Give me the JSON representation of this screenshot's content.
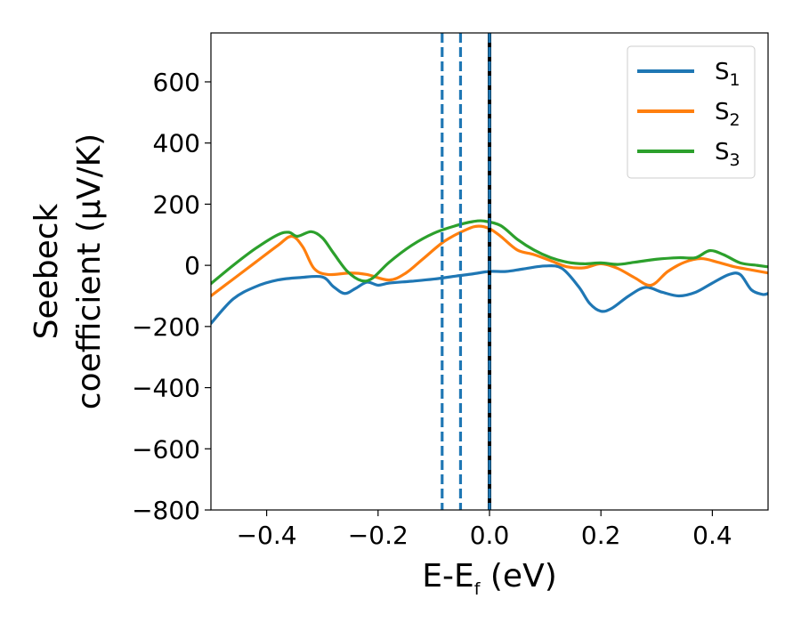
{
  "chart_data": {
    "type": "line",
    "xlabel": {
      "main": "E-E",
      "sub": "f",
      "unit": " (eV)"
    },
    "ylabel": {
      "line1": "Seebeck",
      "line2": "coefficient  (μV/K)"
    },
    "xlim": [
      -0.5,
      0.5
    ],
    "ylim": [
      -800,
      760
    ],
    "xticks": [
      -0.4,
      -0.2,
      0.0,
      0.2,
      0.4
    ],
    "xtick_labels": [
      "−0.4",
      "−0.2",
      "0.0",
      "0.2",
      "0.4"
    ],
    "yticks": [
      -800,
      -600,
      -400,
      -200,
      0,
      200,
      400,
      600
    ],
    "ytick_labels": [
      "−800",
      "−600",
      "−400",
      "−200",
      "0",
      "200",
      "400",
      "600"
    ],
    "grid": false,
    "legend_position": "top-right",
    "vertical_lines": [
      {
        "x": -0.085,
        "style": "dashed",
        "color": "#1f77b4"
      },
      {
        "x": -0.052,
        "style": "dashed",
        "color": "#1f77b4"
      },
      {
        "x": 0.0,
        "style": "solid",
        "color": "#000000"
      },
      {
        "x": 0.0,
        "style": "dashed",
        "color": "#1f77b4"
      }
    ],
    "series": [
      {
        "name": "S",
        "sub": "1",
        "color": "#1f77b4",
        "points": [
          [
            -0.5,
            -190
          ],
          [
            -0.46,
            -110
          ],
          [
            -0.42,
            -70
          ],
          [
            -0.38,
            -48
          ],
          [
            -0.34,
            -40
          ],
          [
            -0.3,
            -38
          ],
          [
            -0.28,
            -70
          ],
          [
            -0.26,
            -92
          ],
          [
            -0.24,
            -75
          ],
          [
            -0.22,
            -55
          ],
          [
            -0.2,
            -65
          ],
          [
            -0.18,
            -58
          ],
          [
            -0.14,
            -52
          ],
          [
            -0.1,
            -45
          ],
          [
            -0.06,
            -35
          ],
          [
            -0.03,
            -28
          ],
          [
            0.0,
            -20
          ],
          [
            0.03,
            -20
          ],
          [
            0.06,
            -12
          ],
          [
            0.1,
            -2
          ],
          [
            0.13,
            -10
          ],
          [
            0.16,
            -70
          ],
          [
            0.18,
            -125
          ],
          [
            0.2,
            -150
          ],
          [
            0.22,
            -140
          ],
          [
            0.25,
            -100
          ],
          [
            0.28,
            -72
          ],
          [
            0.31,
            -88
          ],
          [
            0.34,
            -100
          ],
          [
            0.37,
            -88
          ],
          [
            0.4,
            -58
          ],
          [
            0.43,
            -30
          ],
          [
            0.45,
            -30
          ],
          [
            0.47,
            -80
          ],
          [
            0.49,
            -95
          ],
          [
            0.5,
            -92
          ]
        ]
      },
      {
        "name": "S",
        "sub": "2",
        "color": "#ff7f0e",
        "points": [
          [
            -0.5,
            -100
          ],
          [
            -0.46,
            -45
          ],
          [
            -0.42,
            10
          ],
          [
            -0.38,
            65
          ],
          [
            -0.355,
            95
          ],
          [
            -0.335,
            60
          ],
          [
            -0.315,
            -10
          ],
          [
            -0.29,
            -30
          ],
          [
            -0.25,
            -25
          ],
          [
            -0.22,
            -30
          ],
          [
            -0.18,
            -48
          ],
          [
            -0.15,
            -25
          ],
          [
            -0.12,
            20
          ],
          [
            -0.08,
            80
          ],
          [
            -0.04,
            118
          ],
          [
            -0.02,
            128
          ],
          [
            0.0,
            120
          ],
          [
            0.02,
            95
          ],
          [
            0.05,
            50
          ],
          [
            0.08,
            35
          ],
          [
            0.11,
            15
          ],
          [
            0.14,
            -5
          ],
          [
            0.17,
            -8
          ],
          [
            0.2,
            5
          ],
          [
            0.23,
            -10
          ],
          [
            0.26,
            -40
          ],
          [
            0.29,
            -65
          ],
          [
            0.32,
            -20
          ],
          [
            0.35,
            10
          ],
          [
            0.38,
            22
          ],
          [
            0.41,
            10
          ],
          [
            0.44,
            -5
          ],
          [
            0.47,
            -15
          ],
          [
            0.5,
            -25
          ]
        ]
      },
      {
        "name": "S",
        "sub": "3",
        "color": "#2ca02c",
        "points": [
          [
            -0.5,
            -60
          ],
          [
            -0.46,
            0
          ],
          [
            -0.42,
            55
          ],
          [
            -0.38,
            100
          ],
          [
            -0.36,
            108
          ],
          [
            -0.345,
            95
          ],
          [
            -0.32,
            110
          ],
          [
            -0.3,
            90
          ],
          [
            -0.28,
            40
          ],
          [
            -0.255,
            -20
          ],
          [
            -0.23,
            -50
          ],
          [
            -0.21,
            -42
          ],
          [
            -0.18,
            10
          ],
          [
            -0.14,
            65
          ],
          [
            -0.1,
            105
          ],
          [
            -0.06,
            130
          ],
          [
            -0.03,
            143
          ],
          [
            -0.01,
            145
          ],
          [
            0.02,
            130
          ],
          [
            0.05,
            85
          ],
          [
            0.08,
            50
          ],
          [
            0.11,
            25
          ],
          [
            0.14,
            10
          ],
          [
            0.17,
            5
          ],
          [
            0.2,
            8
          ],
          [
            0.23,
            3
          ],
          [
            0.26,
            10
          ],
          [
            0.3,
            20
          ],
          [
            0.34,
            25
          ],
          [
            0.37,
            25
          ],
          [
            0.395,
            48
          ],
          [
            0.42,
            35
          ],
          [
            0.45,
            8
          ],
          [
            0.48,
            0
          ],
          [
            0.5,
            -5
          ]
        ]
      }
    ]
  }
}
